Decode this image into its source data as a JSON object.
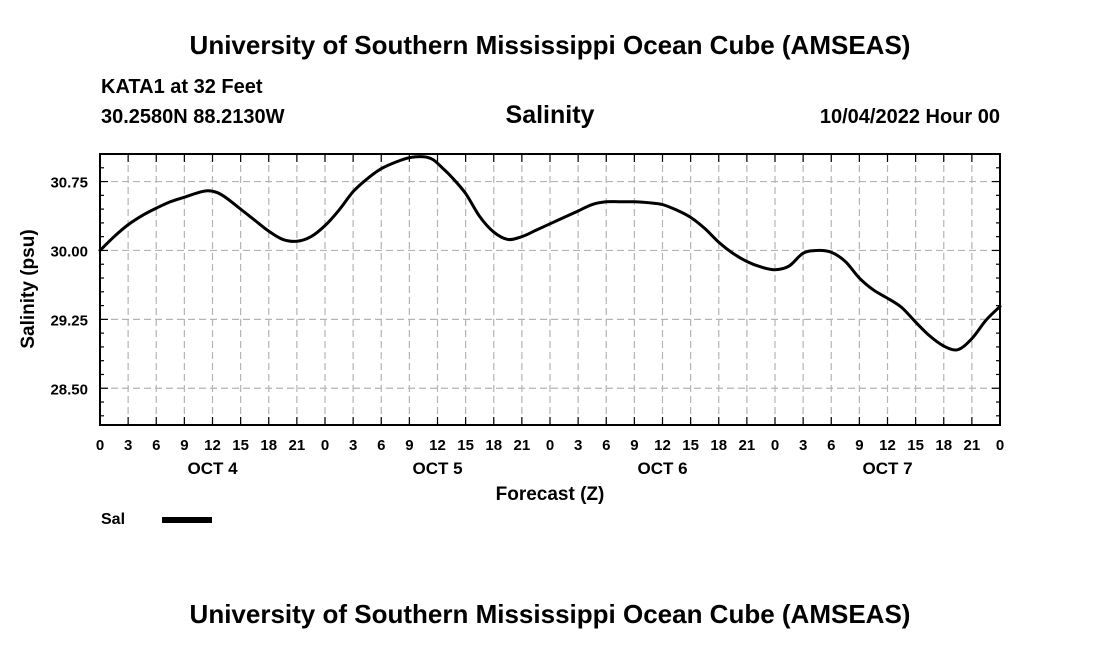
{
  "header": {
    "title": "University of Southern Mississippi Ocean Cube (AMSEAS)",
    "station": "KATA1 at 32 Feet",
    "coords": "30.2580N  88.2130W",
    "chart_title": "Salinity",
    "datetime": "10/04/2022 Hour 00"
  },
  "footer": {
    "title": "University of Southern Mississippi Ocean Cube (AMSEAS)"
  },
  "legend": {
    "label": "Sal",
    "color": "#000000"
  },
  "chart_data": {
    "type": "line",
    "title": "Salinity",
    "xlabel": "Forecast (Z)",
    "ylabel": "Salinity (psu)",
    "xlim": [
      0,
      96
    ],
    "ylim": [
      28.1,
      31.05
    ],
    "yticks": [
      28.5,
      29.25,
      30.0,
      30.75
    ],
    "ytick_labels": [
      "28.50",
      "29.25",
      "30.00",
      "30.75"
    ],
    "xticks": [
      0,
      3,
      6,
      9,
      12,
      15,
      18,
      21,
      24,
      27,
      30,
      33,
      36,
      39,
      42,
      45,
      48,
      51,
      54,
      57,
      60,
      63,
      66,
      69,
      72,
      75,
      78,
      81,
      84,
      87,
      90,
      93,
      96
    ],
    "xtick_labels": [
      "0",
      "3",
      "6",
      "9",
      "12",
      "15",
      "18",
      "21",
      "0",
      "3",
      "6",
      "9",
      "12",
      "15",
      "18",
      "21",
      "0",
      "3",
      "6",
      "9",
      "12",
      "15",
      "18",
      "21",
      "0",
      "3",
      "6",
      "9",
      "12",
      "15",
      "18",
      "21",
      "0"
    ],
    "day_labels": [
      {
        "x": 12,
        "label": "OCT 4"
      },
      {
        "x": 36,
        "label": "OCT 5"
      },
      {
        "x": 60,
        "label": "OCT 6"
      },
      {
        "x": 84,
        "label": "OCT 7"
      }
    ],
    "grid": true,
    "series": [
      {
        "name": "Sal",
        "color": "#000000",
        "x": [
          0,
          1.5,
          3,
          4.5,
          6,
          7.5,
          9,
          10.5,
          11.5,
          12.5,
          13.5,
          15,
          16.5,
          18,
          19.5,
          21,
          22.5,
          24,
          25.5,
          27,
          28.5,
          30,
          31.5,
          33,
          34.5,
          35.5,
          36.5,
          37.5,
          39,
          40.5,
          42,
          43.5,
          45,
          46.5,
          48,
          49.5,
          51,
          52.5,
          54,
          55.5,
          57,
          58.5,
          60,
          61.5,
          63,
          64.5,
          66,
          67.5,
          69,
          70.5,
          72,
          73.5,
          75,
          76.5,
          78,
          79.5,
          81,
          82.5,
          84,
          85.5,
          87,
          88.5,
          90,
          91.5,
          93,
          94.5,
          96
        ],
        "values": [
          30.0,
          30.15,
          30.28,
          30.38,
          30.46,
          30.53,
          30.58,
          30.63,
          30.65,
          30.63,
          30.57,
          30.45,
          30.33,
          30.21,
          30.12,
          30.1,
          30.15,
          30.27,
          30.44,
          30.64,
          30.78,
          30.89,
          30.96,
          31.01,
          31.02,
          30.99,
          30.9,
          30.8,
          30.62,
          30.37,
          30.2,
          30.12,
          30.15,
          30.22,
          30.29,
          30.36,
          30.43,
          30.5,
          30.53,
          30.53,
          30.53,
          30.52,
          30.5,
          30.44,
          30.36,
          30.24,
          30.09,
          29.97,
          29.88,
          29.82,
          29.79,
          29.83,
          29.97,
          30.0,
          29.98,
          29.88,
          29.7,
          29.57,
          29.48,
          29.38,
          29.22,
          29.07,
          28.96,
          28.92,
          29.04,
          29.24,
          29.39
        ]
      }
    ]
  }
}
